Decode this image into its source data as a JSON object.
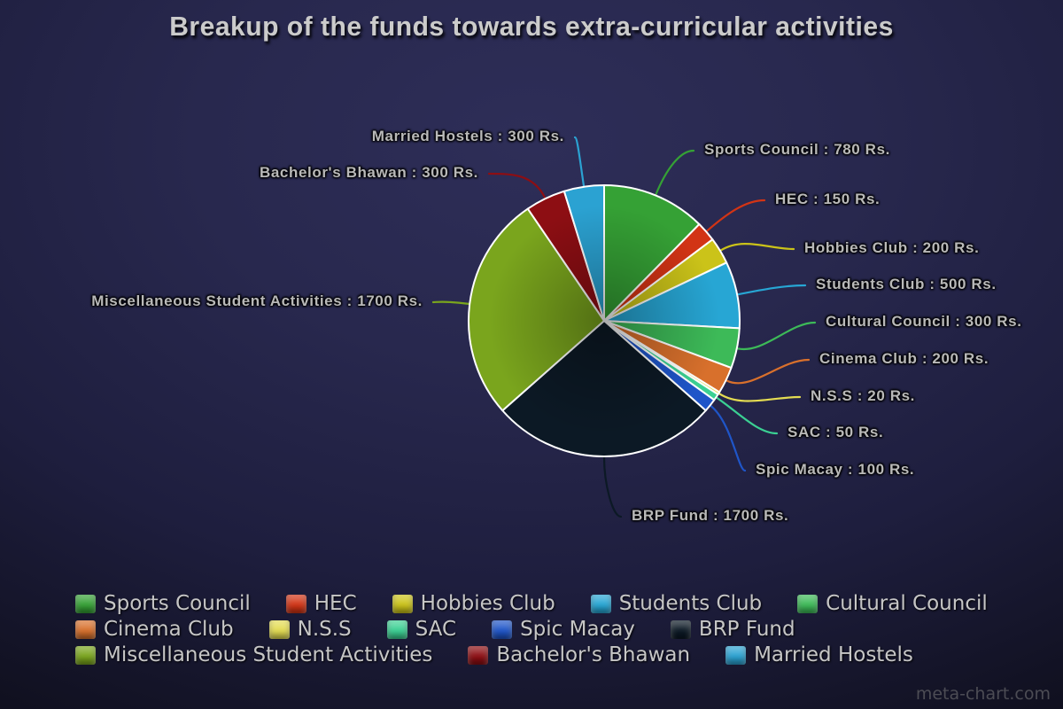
{
  "title": "Breakup of the funds towards extra-curricular activities",
  "watermark": "meta-chart.com",
  "chart_data": {
    "type": "pie",
    "title": "Breakup of the funds towards extra-curricular activities",
    "unit": "Rs.",
    "total": 6300,
    "legend_position": "bottom",
    "start_angle_deg": -90,
    "direction": "clockwise",
    "slices": [
      {
        "label": "Sports Council",
        "value": 780,
        "color": "#35a135",
        "callout": "Sports Council : 780 Rs."
      },
      {
        "label": "HEC",
        "value": 150,
        "color": "#d23415",
        "callout": "HEC : 150 Rs."
      },
      {
        "label": "Hobbies Club",
        "value": 200,
        "color": "#cbc319",
        "callout": "Hobbies Club : 200 Rs."
      },
      {
        "label": "Students Club",
        "value": 500,
        "color": "#27a6d4",
        "callout": "Students Club : 500 Rs."
      },
      {
        "label": "Cultural Council",
        "value": 300,
        "color": "#3dba58",
        "callout": "Cultural Council : 300 Rs."
      },
      {
        "label": "Cinema Club",
        "value": 200,
        "color": "#d8702c",
        "callout": "Cinema Club : 200 Rs."
      },
      {
        "label": "N.S.S",
        "value": 20,
        "color": "#e4dc52",
        "callout": "N.S.S : 20 Rs."
      },
      {
        "label": "SAC",
        "value": 50,
        "color": "#3bd093",
        "callout": "SAC : 50 Rs."
      },
      {
        "label": "Spic Macay",
        "value": 100,
        "color": "#1f55c8",
        "callout": "Spic Macay : 100 Rs."
      },
      {
        "label": "BRP Fund",
        "value": 1700,
        "color": "#0c1925",
        "callout": "BRP Fund : 1700 Rs."
      },
      {
        "label": "Miscellaneous Student Activities",
        "value": 1700,
        "color": "#7aa51d",
        "callout": "Miscellaneous Student Activities : 1700 Rs."
      },
      {
        "label": "Bachelor's Bhawan",
        "value": 300,
        "color": "#8d0e13",
        "callout": "Bachelor's Bhawan : 300 Rs."
      },
      {
        "label": "Married Hostels",
        "value": 300,
        "color": "#2ba2d2",
        "callout": "Married Hostels : 300 Rs."
      }
    ]
  }
}
